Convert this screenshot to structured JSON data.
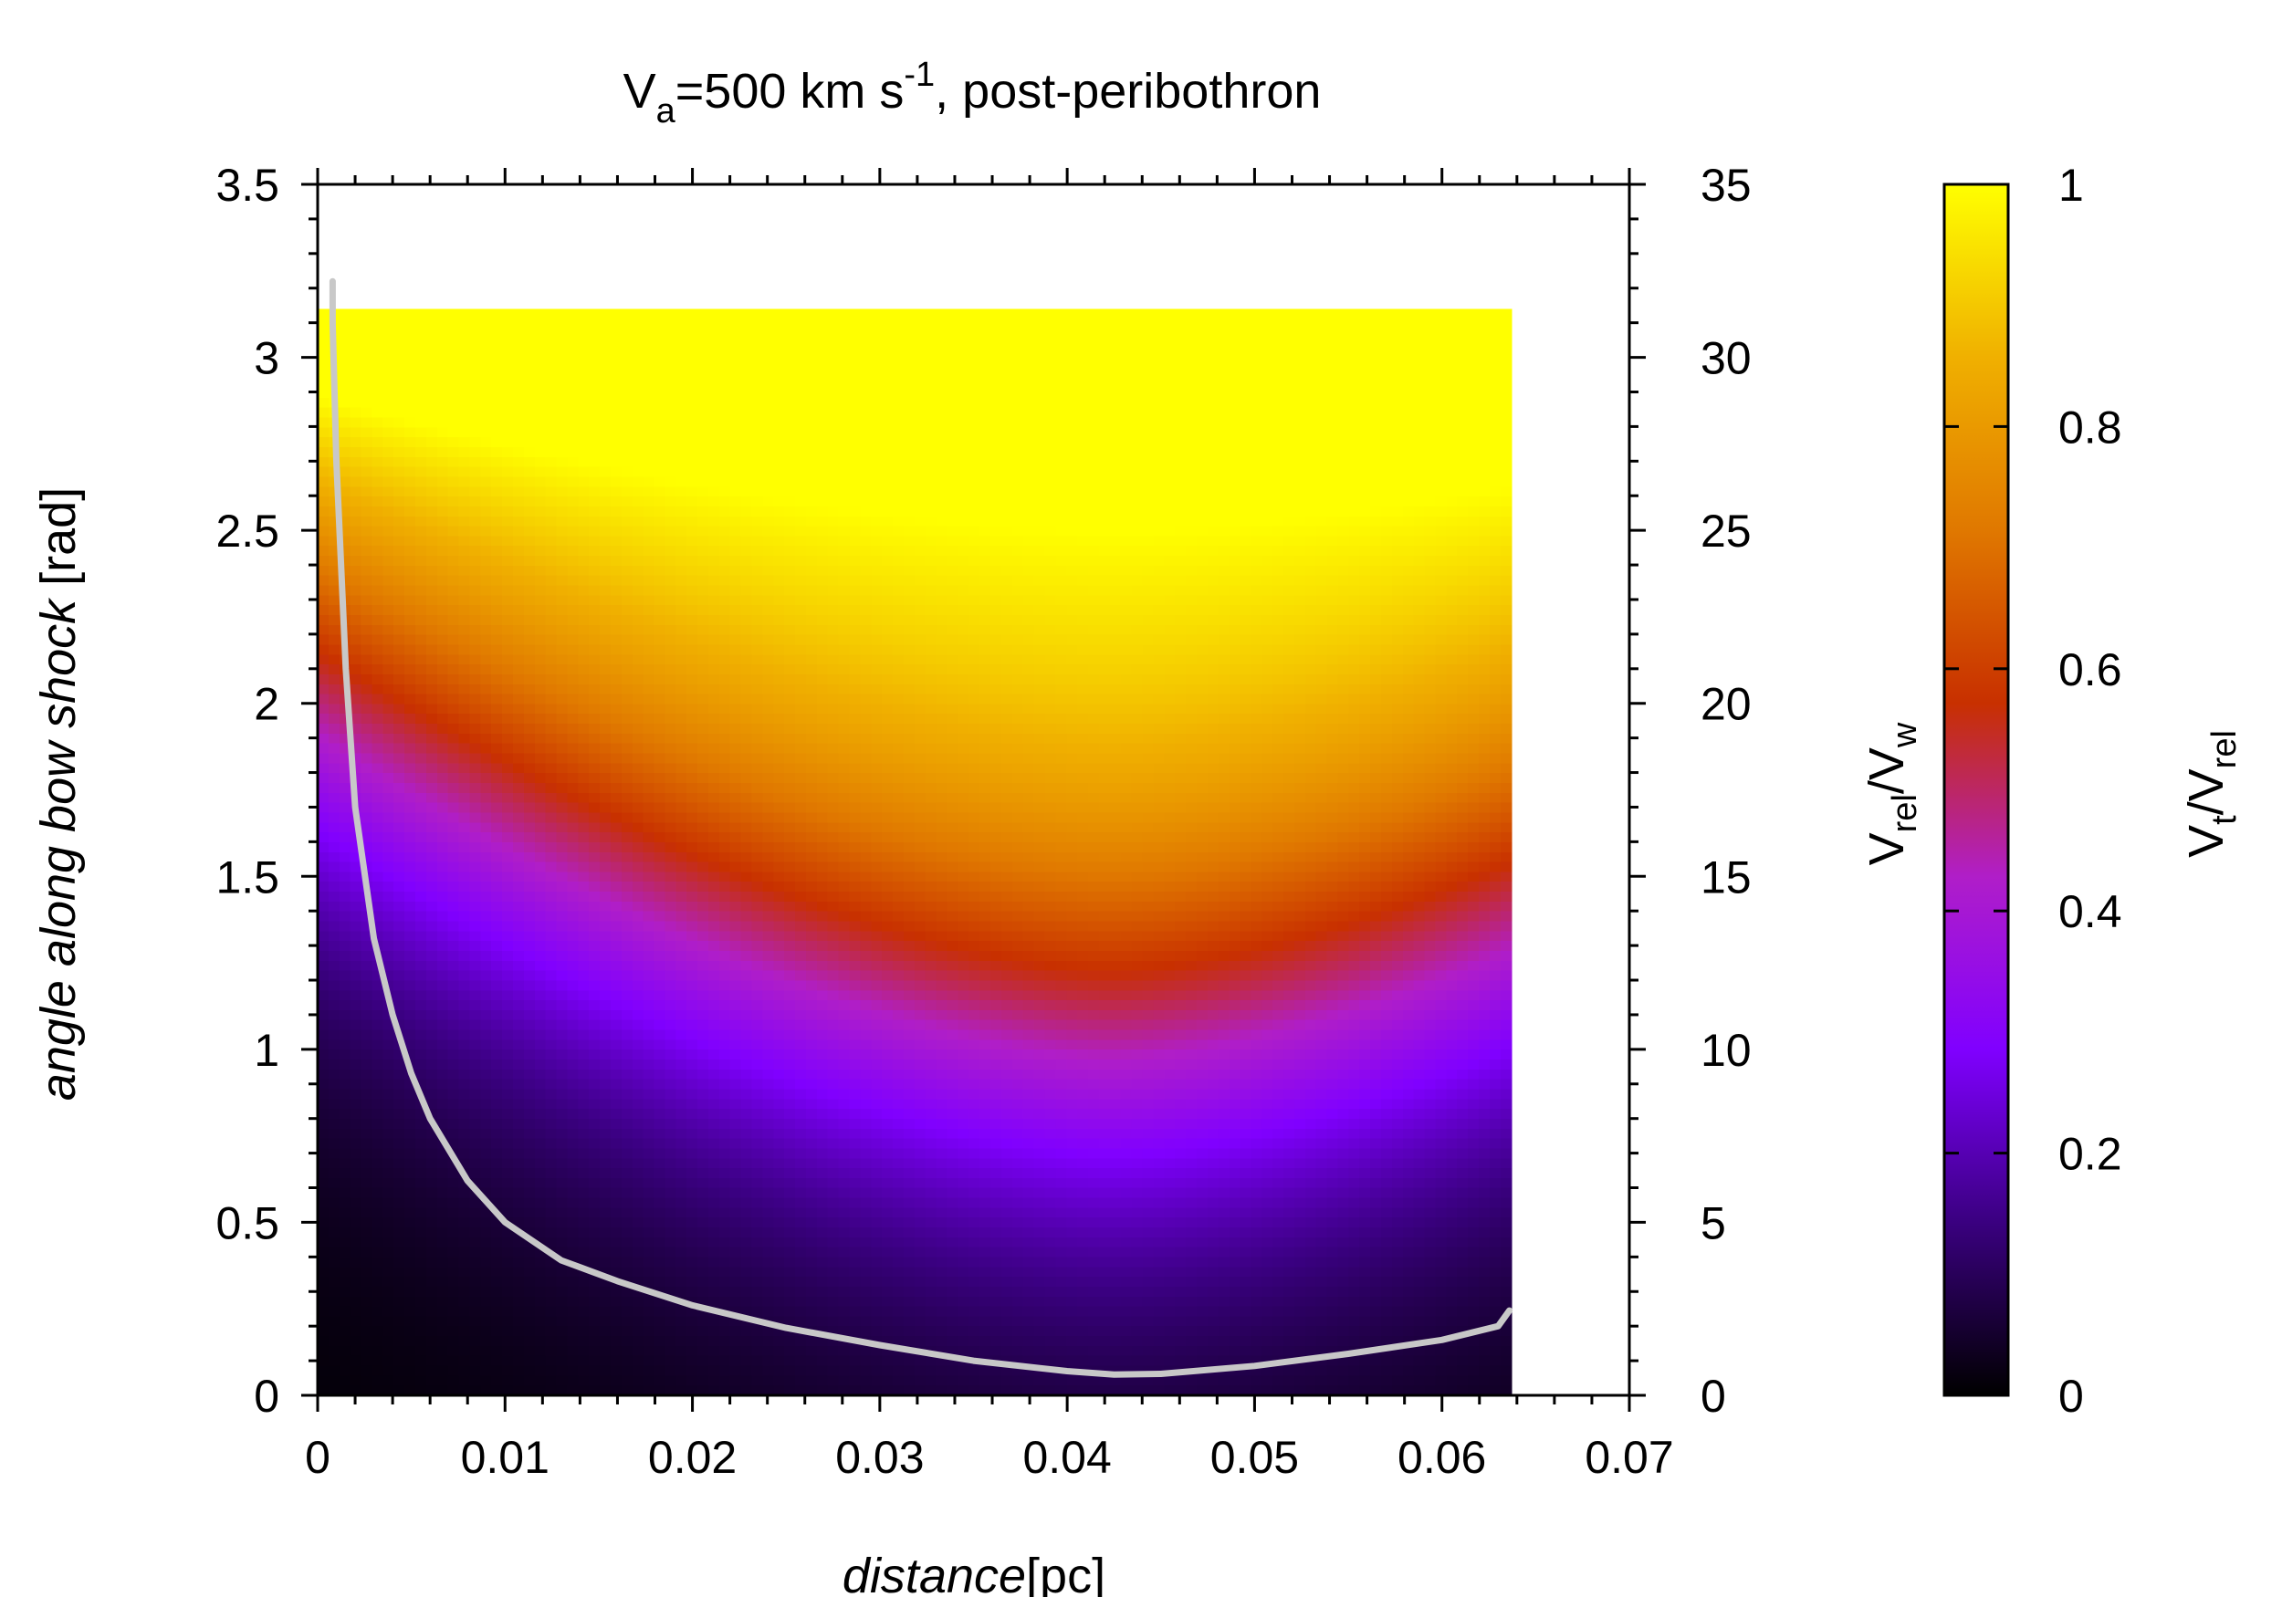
{
  "chart_data": {
    "type": "heatmap",
    "title": {
      "main": "V",
      "sub": "a",
      "rest": "=500 km s",
      "sup": "-1",
      "tail": ", post-peribothron"
    },
    "xlabel": {
      "italic": "distance",
      "plain": "[pc]"
    },
    "ylabel": {
      "italic": "angle along bow shock",
      "plain": " [rad]"
    },
    "y2label": {
      "p1": "V",
      "s1": "rel",
      "p2": "/V",
      "s2": "w"
    },
    "cblabel": {
      "p1": "V",
      "s1": "t",
      "p2": "/V",
      "s2": "rel"
    },
    "xlim": [
      0,
      0.07
    ],
    "ylim": [
      0,
      3.5
    ],
    "y2lim": [
      0,
      35
    ],
    "cblim": [
      0,
      1
    ],
    "x_ticks": [
      "0",
      "0.01",
      "0.02",
      "0.03",
      "0.04",
      "0.05",
      "0.06",
      "0.07"
    ],
    "x_tick_values": [
      0,
      0.01,
      0.02,
      0.03,
      0.04,
      0.05,
      0.06,
      0.07
    ],
    "y_ticks": [
      "0",
      "0.5",
      "1",
      "1.5",
      "2",
      "2.5",
      "3",
      "3.5"
    ],
    "y_tick_values": [
      0,
      0.5,
      1,
      1.5,
      2,
      2.5,
      3,
      3.5
    ],
    "y2_ticks": [
      "0",
      "5",
      "10",
      "15",
      "20",
      "25",
      "30",
      "35"
    ],
    "y2_tick_values": [
      0,
      5,
      10,
      15,
      20,
      25,
      30,
      35
    ],
    "cb_ticks": [
      "0",
      "0.2",
      "0.4",
      "0.6",
      "0.8",
      "1"
    ],
    "cb_tick_values": [
      0,
      0.2,
      0.4,
      0.6,
      0.8,
      1
    ],
    "heatmap_extent": {
      "x": [
        0,
        0.0637
      ],
      "y": [
        0,
        3.14
      ]
    },
    "colormap": [
      "#000000",
      "#3a0080",
      "#8000ff",
      "#b01ec8",
      "#c83000",
      "#e07800",
      "#f0b000",
      "#ffff00"
    ],
    "contour_line": {
      "color": "#c8c8c8",
      "axis": "y2",
      "x": [
        0.0008,
        0.0008,
        0.001,
        0.0015,
        0.002,
        0.003,
        0.004,
        0.005,
        0.006,
        0.008,
        0.01,
        0.013,
        0.016,
        0.02,
        0.025,
        0.03,
        0.035,
        0.04,
        0.0425,
        0.045,
        0.05,
        0.055,
        0.06,
        0.063,
        0.0636
      ],
      "y": [
        32.2,
        31.0,
        27.0,
        21.0,
        17.0,
        13.2,
        11.0,
        9.3,
        8.0,
        6.2,
        5.0,
        3.9,
        3.3,
        2.6,
        1.95,
        1.45,
        1.0,
        0.7,
        0.6,
        0.62,
        0.85,
        1.2,
        1.6,
        2.0,
        2.45
      ]
    }
  }
}
